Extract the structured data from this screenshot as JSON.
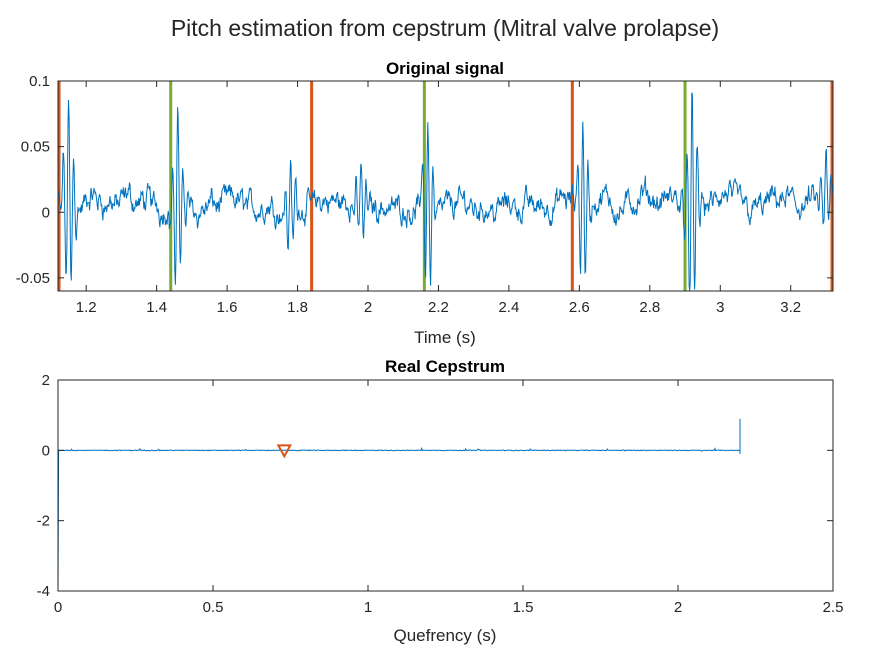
{
  "figure_title": "Pitch estimation from cepstrum (Mitral valve prolapse)",
  "chart_data": [
    {
      "type": "line",
      "title": "Original signal",
      "xlabel": "Time (s)",
      "ylabel": "",
      "xlim": [
        1.12,
        3.32
      ],
      "ylim": [
        -0.06,
        0.1
      ],
      "xticks": [
        1.2,
        1.4,
        1.6,
        1.8,
        2,
        2.2,
        2.4,
        2.6,
        2.8,
        3,
        3.2
      ],
      "xtick_labels": [
        "1.2",
        "1.4",
        "1.6",
        "1.8",
        "2",
        "2.2",
        "2.4",
        "2.6",
        "2.8",
        "3",
        "3.2"
      ],
      "yticks": [
        -0.05,
        0,
        0.05,
        0.1
      ],
      "ytick_labels": [
        "-0.05",
        "0",
        "0.05",
        "0.1"
      ],
      "grid": false,
      "signal_color": "#0072BD",
      "peaks": [
        {
          "t": 1.15,
          "amp": 0.075
        },
        {
          "t": 1.46,
          "amp": 0.07
        },
        {
          "t": 1.78,
          "amp": 0.035
        },
        {
          "t": 1.98,
          "amp": 0.03
        },
        {
          "t": 2.17,
          "amp": 0.065
        },
        {
          "t": 2.61,
          "amp": 0.06
        },
        {
          "t": 2.92,
          "amp": 0.09
        },
        {
          "t": 3.3,
          "amp": 0.03
        }
      ],
      "vlines": [
        {
          "x": 1.12,
          "color": "#D95319"
        },
        {
          "x": 1.44,
          "color": "#77AC30"
        },
        {
          "x": 1.84,
          "color": "#D95319"
        },
        {
          "x": 2.16,
          "color": "#77AC30"
        },
        {
          "x": 2.58,
          "color": "#D95319"
        },
        {
          "x": 2.9,
          "color": "#77AC30"
        },
        {
          "x": 3.32,
          "color": "#D95319"
        }
      ]
    },
    {
      "type": "line",
      "title": "Real Cepstrum",
      "xlabel": "Quefrency (s)",
      "ylabel": "",
      "xlim": [
        0,
        2.5
      ],
      "ylim": [
        -4,
        2
      ],
      "xticks": [
        0,
        0.5,
        1,
        1.5,
        2,
        2.5
      ],
      "xtick_labels": [
        "0",
        "0.5",
        "1",
        "1.5",
        "2",
        "2.5"
      ],
      "yticks": [
        -4,
        -2,
        0,
        2
      ],
      "ytick_labels": [
        "-4",
        "-2",
        "0",
        "2"
      ],
      "grid": false,
      "signal_color": "#0072BD",
      "start_dip": -4,
      "end_x": 2.2,
      "end_spike": 0.9,
      "marker": {
        "x": 0.73,
        "y": 0,
        "shape": "triangle-down",
        "color": "#D95319"
      }
    }
  ]
}
